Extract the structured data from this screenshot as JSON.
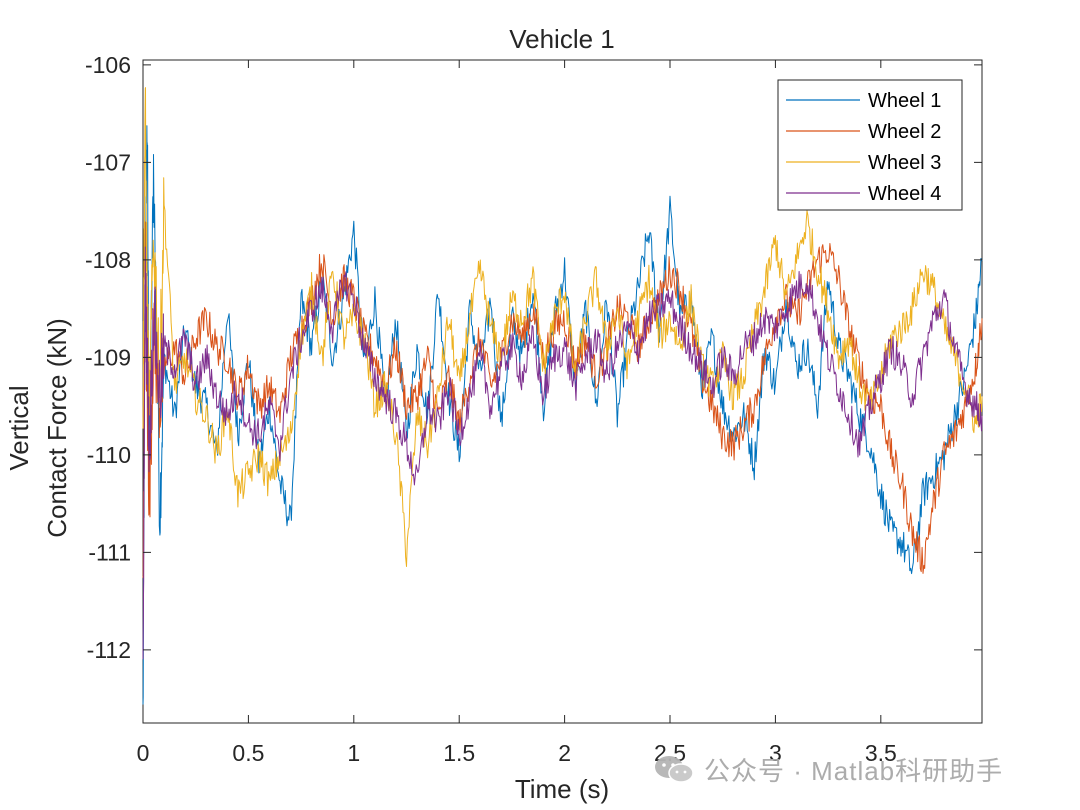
{
  "chart_data": {
    "type": "line",
    "title": "Vehicle 1",
    "xlabel": "Time (s)",
    "ylabel_lines": [
      "Vertical",
      "Contact Force (kN)"
    ],
    "xlim": [
      0,
      3.98
    ],
    "ylim": [
      -112.75,
      -105.95
    ],
    "x_ticks": [
      0,
      0.5,
      1,
      1.5,
      2,
      2.5,
      3,
      3.5
    ],
    "x_tick_labels": [
      "0",
      "0.5",
      "1",
      "1.5",
      "2",
      "2.5",
      "3",
      "3.5"
    ],
    "y_ticks": [
      -106,
      -107,
      -108,
      -109,
      -110,
      -111,
      -112
    ],
    "y_tick_labels": [
      "-106",
      "-107",
      "-108",
      "-109",
      "-110",
      "-111",
      "-112"
    ],
    "legend_position": "top-right",
    "grid": false,
    "series": [
      {
        "name": "Wheel 1",
        "color": "#0072BD",
        "x": [
          0,
          0.01,
          0.02,
          0.03,
          0.05,
          0.08,
          0.1,
          0.15,
          0.2,
          0.25,
          0.3,
          0.35,
          0.4,
          0.45,
          0.5,
          0.55,
          0.6,
          0.65,
          0.7,
          0.75,
          0.8,
          0.85,
          0.9,
          0.95,
          1.0,
          1.05,
          1.1,
          1.15,
          1.2,
          1.25,
          1.3,
          1.35,
          1.4,
          1.45,
          1.5,
          1.55,
          1.6,
          1.65,
          1.7,
          1.75,
          1.8,
          1.85,
          1.9,
          1.95,
          2.0,
          2.05,
          2.1,
          2.15,
          2.2,
          2.25,
          2.3,
          2.35,
          2.4,
          2.45,
          2.5,
          2.55,
          2.6,
          2.65,
          2.7,
          2.75,
          2.8,
          2.85,
          2.9,
          2.95,
          3.0,
          3.05,
          3.1,
          3.15,
          3.2,
          3.25,
          3.3,
          3.35,
          3.4,
          3.45,
          3.5,
          3.55,
          3.6,
          3.65,
          3.7,
          3.75,
          3.8,
          3.85,
          3.9,
          3.95,
          3.98
        ],
        "values": [
          -112.7,
          -108.0,
          -106.6,
          -110.2,
          -107.0,
          -110.6,
          -109.0,
          -109.6,
          -108.7,
          -109.3,
          -109.5,
          -110.0,
          -108.5,
          -109.8,
          -109.0,
          -110.1,
          -109.5,
          -110.3,
          -110.7,
          -108.4,
          -108.9,
          -108.2,
          -109.0,
          -108.4,
          -107.7,
          -109.1,
          -108.4,
          -109.5,
          -108.6,
          -109.8,
          -108.9,
          -109.6,
          -108.3,
          -109.4,
          -110.0,
          -108.5,
          -109.2,
          -108.4,
          -109.7,
          -108.6,
          -109.0,
          -108.3,
          -109.5,
          -108.6,
          -108.1,
          -109.3,
          -108.5,
          -109.5,
          -108.4,
          -109.6,
          -108.8,
          -108.3,
          -107.7,
          -108.7,
          -107.5,
          -108.6,
          -108.4,
          -109.3,
          -108.8,
          -109.5,
          -109.8,
          -109.6,
          -110.1,
          -108.9,
          -109.3,
          -108.4,
          -109.1,
          -108.9,
          -109.5,
          -108.2,
          -108.9,
          -109.2,
          -109.6,
          -109.9,
          -110.4,
          -110.8,
          -110.9,
          -111.2,
          -110.4,
          -110.2,
          -110.0,
          -109.6,
          -109.2,
          -108.6,
          -108.0
        ]
      },
      {
        "name": "Wheel 2",
        "color": "#D95319",
        "x": [
          0,
          0.01,
          0.02,
          0.03,
          0.05,
          0.08,
          0.1,
          0.15,
          0.2,
          0.25,
          0.3,
          0.35,
          0.4,
          0.45,
          0.5,
          0.55,
          0.6,
          0.65,
          0.7,
          0.75,
          0.8,
          0.85,
          0.9,
          0.95,
          1.0,
          1.05,
          1.1,
          1.15,
          1.2,
          1.25,
          1.3,
          1.35,
          1.4,
          1.45,
          1.5,
          1.55,
          1.6,
          1.65,
          1.7,
          1.75,
          1.8,
          1.85,
          1.9,
          1.95,
          2.0,
          2.05,
          2.1,
          2.15,
          2.2,
          2.25,
          2.3,
          2.35,
          2.4,
          2.45,
          2.5,
          2.55,
          2.6,
          2.65,
          2.7,
          2.75,
          2.8,
          2.85,
          2.9,
          2.95,
          3.0,
          3.05,
          3.1,
          3.15,
          3.2,
          3.25,
          3.3,
          3.35,
          3.4,
          3.45,
          3.5,
          3.55,
          3.6,
          3.65,
          3.7,
          3.75,
          3.8,
          3.85,
          3.9,
          3.95,
          3.98
        ],
        "values": [
          -111.5,
          -108.0,
          -109.5,
          -110.5,
          -108.8,
          -109.5,
          -109.1,
          -108.9,
          -109.2,
          -108.8,
          -108.6,
          -108.9,
          -109.0,
          -109.4,
          -109.1,
          -109.5,
          -109.3,
          -109.6,
          -109.0,
          -108.7,
          -108.4,
          -108.0,
          -108.6,
          -108.2,
          -108.4,
          -108.8,
          -109.0,
          -109.3,
          -108.9,
          -109.5,
          -109.4,
          -109.0,
          -109.6,
          -109.2,
          -109.7,
          -109.2,
          -108.8,
          -109.3,
          -109.0,
          -108.6,
          -108.8,
          -108.5,
          -109.0,
          -108.7,
          -108.6,
          -109.1,
          -108.8,
          -109.2,
          -108.9,
          -108.5,
          -108.6,
          -108.9,
          -108.6,
          -108.4,
          -108.1,
          -108.3,
          -108.7,
          -109.2,
          -109.5,
          -109.8,
          -109.9,
          -109.7,
          -109.5,
          -109.0,
          -108.6,
          -108.4,
          -108.6,
          -108.3,
          -108.0,
          -107.9,
          -108.2,
          -108.7,
          -109.1,
          -109.4,
          -109.5,
          -110.0,
          -110.3,
          -110.8,
          -111.1,
          -110.5,
          -110.0,
          -109.8,
          -109.5,
          -109.1,
          -108.6
        ]
      },
      {
        "name": "Wheel 3",
        "color": "#EDB120",
        "x": [
          0,
          0.01,
          0.02,
          0.03,
          0.05,
          0.08,
          0.1,
          0.15,
          0.2,
          0.25,
          0.3,
          0.35,
          0.4,
          0.45,
          0.5,
          0.55,
          0.6,
          0.65,
          0.7,
          0.75,
          0.8,
          0.85,
          0.9,
          0.95,
          1.0,
          1.05,
          1.1,
          1.15,
          1.2,
          1.25,
          1.3,
          1.35,
          1.4,
          1.45,
          1.5,
          1.55,
          1.6,
          1.65,
          1.7,
          1.75,
          1.8,
          1.85,
          1.9,
          1.95,
          2.0,
          2.05,
          2.1,
          2.15,
          2.2,
          2.25,
          2.3,
          2.35,
          2.4,
          2.45,
          2.5,
          2.55,
          2.6,
          2.65,
          2.7,
          2.75,
          2.8,
          2.85,
          2.9,
          2.95,
          3.0,
          3.05,
          3.1,
          3.15,
          3.2,
          3.25,
          3.3,
          3.35,
          3.4,
          3.45,
          3.5,
          3.55,
          3.6,
          3.65,
          3.7,
          3.75,
          3.8,
          3.85,
          3.9,
          3.95,
          3.98
        ],
        "values": [
          -109.5,
          -106.3,
          -108.5,
          -109.6,
          -107.7,
          -109.2,
          -107.4,
          -109.3,
          -109.0,
          -109.4,
          -109.6,
          -110.0,
          -109.5,
          -110.4,
          -110.2,
          -110.0,
          -110.3,
          -110.0,
          -109.8,
          -108.8,
          -108.3,
          -109.0,
          -108.1,
          -108.8,
          -108.6,
          -108.8,
          -109.5,
          -109.3,
          -109.8,
          -111.0,
          -109.6,
          -109.9,
          -109.4,
          -108.6,
          -109.3,
          -108.6,
          -108.1,
          -108.7,
          -109.0,
          -108.4,
          -108.6,
          -108.2,
          -109.1,
          -108.6,
          -108.3,
          -109.2,
          -108.6,
          -108.2,
          -108.9,
          -108.5,
          -109.1,
          -108.6,
          -108.2,
          -108.8,
          -108.6,
          -108.9,
          -108.4,
          -109.1,
          -109.3,
          -109.0,
          -109.4,
          -109.2,
          -108.7,
          -108.3,
          -107.8,
          -108.4,
          -108.0,
          -107.6,
          -108.1,
          -108.5,
          -109.0,
          -108.8,
          -109.3,
          -109.5,
          -109.2,
          -108.8,
          -108.7,
          -108.5,
          -108.1,
          -108.3,
          -108.7,
          -109.0,
          -109.3,
          -109.7,
          -109.4
        ]
      },
      {
        "name": "Wheel 4",
        "color": "#7E2F8E",
        "x": [
          0,
          0.01,
          0.02,
          0.03,
          0.05,
          0.08,
          0.1,
          0.15,
          0.2,
          0.25,
          0.3,
          0.35,
          0.4,
          0.45,
          0.5,
          0.55,
          0.6,
          0.65,
          0.7,
          0.75,
          0.8,
          0.85,
          0.9,
          0.95,
          1.0,
          1.05,
          1.1,
          1.15,
          1.2,
          1.25,
          1.3,
          1.35,
          1.4,
          1.45,
          1.5,
          1.55,
          1.6,
          1.65,
          1.7,
          1.75,
          1.8,
          1.85,
          1.9,
          1.95,
          2.0,
          2.05,
          2.1,
          2.15,
          2.2,
          2.25,
          2.3,
          2.35,
          2.4,
          2.45,
          2.5,
          2.55,
          2.6,
          2.65,
          2.7,
          2.75,
          2.8,
          2.85,
          2.9,
          2.95,
          3.0,
          3.05,
          3.1,
          3.15,
          3.2,
          3.25,
          3.3,
          3.35,
          3.4,
          3.45,
          3.5,
          3.55,
          3.6,
          3.65,
          3.7,
          3.75,
          3.8,
          3.85,
          3.9,
          3.95,
          3.98
        ],
        "values": [
          -112.5,
          -108.2,
          -109.0,
          -110.0,
          -108.5,
          -109.4,
          -108.9,
          -109.1,
          -108.8,
          -109.3,
          -109.0,
          -109.4,
          -109.6,
          -109.3,
          -109.7,
          -109.8,
          -109.5,
          -109.9,
          -109.2,
          -108.8,
          -108.5,
          -108.3,
          -108.7,
          -108.2,
          -108.4,
          -108.9,
          -109.2,
          -109.4,
          -109.6,
          -109.9,
          -110.3,
          -109.5,
          -109.7,
          -109.3,
          -109.8,
          -109.4,
          -109.0,
          -109.5,
          -109.1,
          -108.9,
          -109.2,
          -108.8,
          -109.4,
          -109.0,
          -108.9,
          -109.3,
          -109.0,
          -108.8,
          -109.2,
          -108.9,
          -108.7,
          -108.9,
          -108.6,
          -108.5,
          -108.4,
          -108.7,
          -108.9,
          -109.1,
          -109.3,
          -109.0,
          -109.2,
          -108.9,
          -108.8,
          -108.6,
          -108.7,
          -108.5,
          -108.3,
          -108.2,
          -108.6,
          -109.0,
          -109.3,
          -109.6,
          -109.9,
          -109.5,
          -109.2,
          -108.9,
          -109.1,
          -109.4,
          -109.0,
          -108.6,
          -108.4,
          -108.9,
          -109.3,
          -109.5,
          -109.6
        ]
      }
    ]
  },
  "watermark": {
    "text": "公众号 · Matlab科研助手",
    "icon": "wechat-icon"
  }
}
